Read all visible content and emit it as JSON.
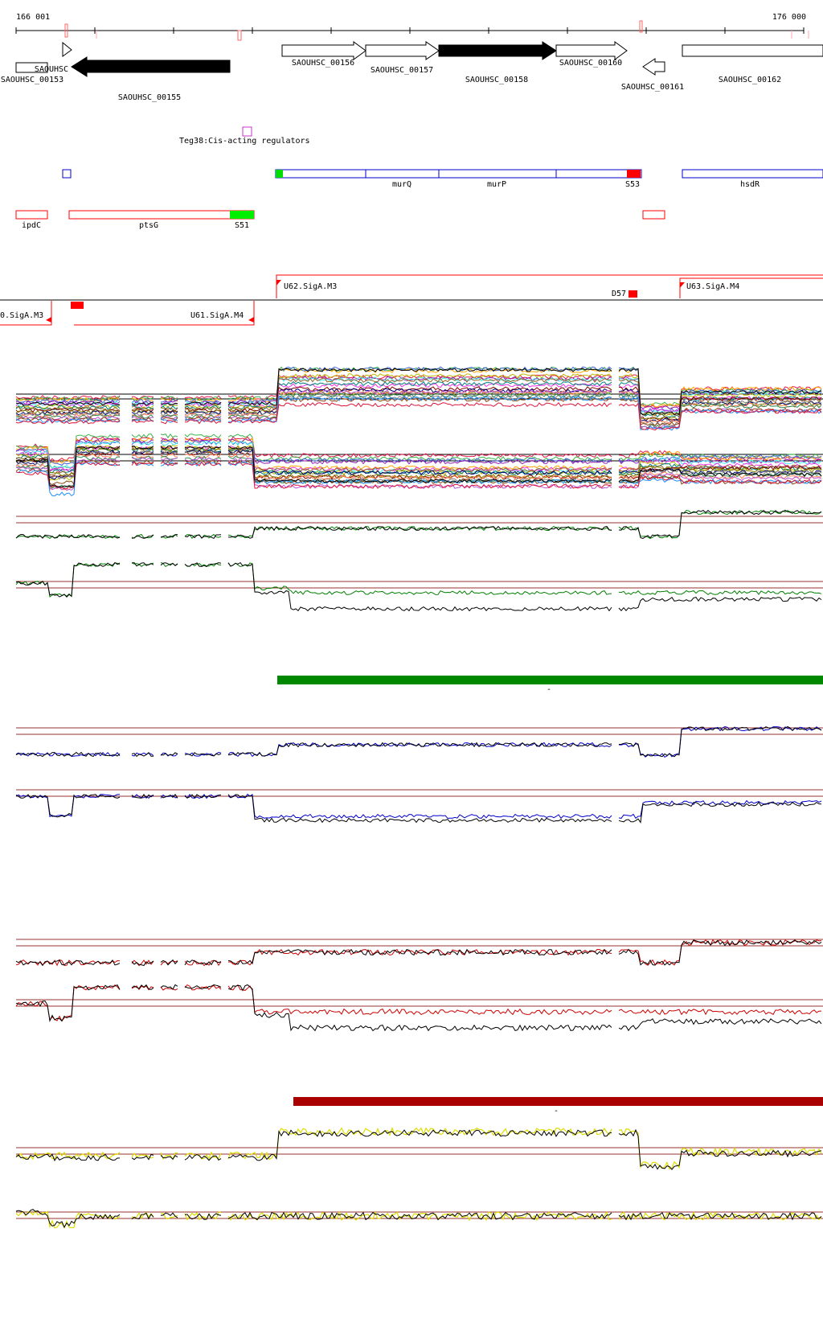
{
  "coordinates": {
    "start_label": "166 001",
    "end_label": "176 000"
  },
  "genes": [
    {
      "id": "SAOUHSC",
      "strand": "+",
      "filled": false
    },
    {
      "id": "SAOUHSC_00153",
      "strand": "+",
      "filled": false
    },
    {
      "id": "SAOUHSC_00155",
      "strand": "-",
      "filled": true
    },
    {
      "id": "SAOUHSC_00156",
      "strand": "+",
      "filled": false
    },
    {
      "id": "SAOUHSC_00157",
      "strand": "+",
      "filled": false
    },
    {
      "id": "SAOUHSC_00158",
      "strand": "+",
      "filled": true
    },
    {
      "id": "SAOUHSC_00160",
      "strand": "+",
      "filled": false
    },
    {
      "id": "SAOUHSC_00161",
      "strand": "-",
      "filled": false
    },
    {
      "id": "SAOUHSC_00162",
      "strand": "+",
      "filled": false
    }
  ],
  "cis_regulator": {
    "label": "Teg38:Cis-acting regulators",
    "color": "#cc33cc"
  },
  "operons_blue": {
    "color": "#0000cc",
    "labels": [
      "murQ",
      "murP",
      "S53",
      "hsdR"
    ]
  },
  "operons_red": {
    "color": "#ff0000",
    "labels": [
      "ipdC",
      "ptsG",
      "S51"
    ]
  },
  "promoters": {
    "top": [
      "U62.SigA.M3",
      "D57",
      "U63.SigA.M4"
    ],
    "bottom": [
      "0.SigA.M3",
      "U61.SigA.M4"
    ]
  },
  "colors": {
    "green_track": "#008000",
    "blue_track": "#0000cc",
    "red_track": "#cc0000",
    "yellow_track": "#dddd00",
    "green_bar": "#008800",
    "red_bar": "#aa0000",
    "ref_line": "#993333"
  },
  "segment_bars": [
    {
      "color_key": "green_bar",
      "label": "-"
    },
    {
      "color_key": "red_bar",
      "label": "-"
    }
  ]
}
